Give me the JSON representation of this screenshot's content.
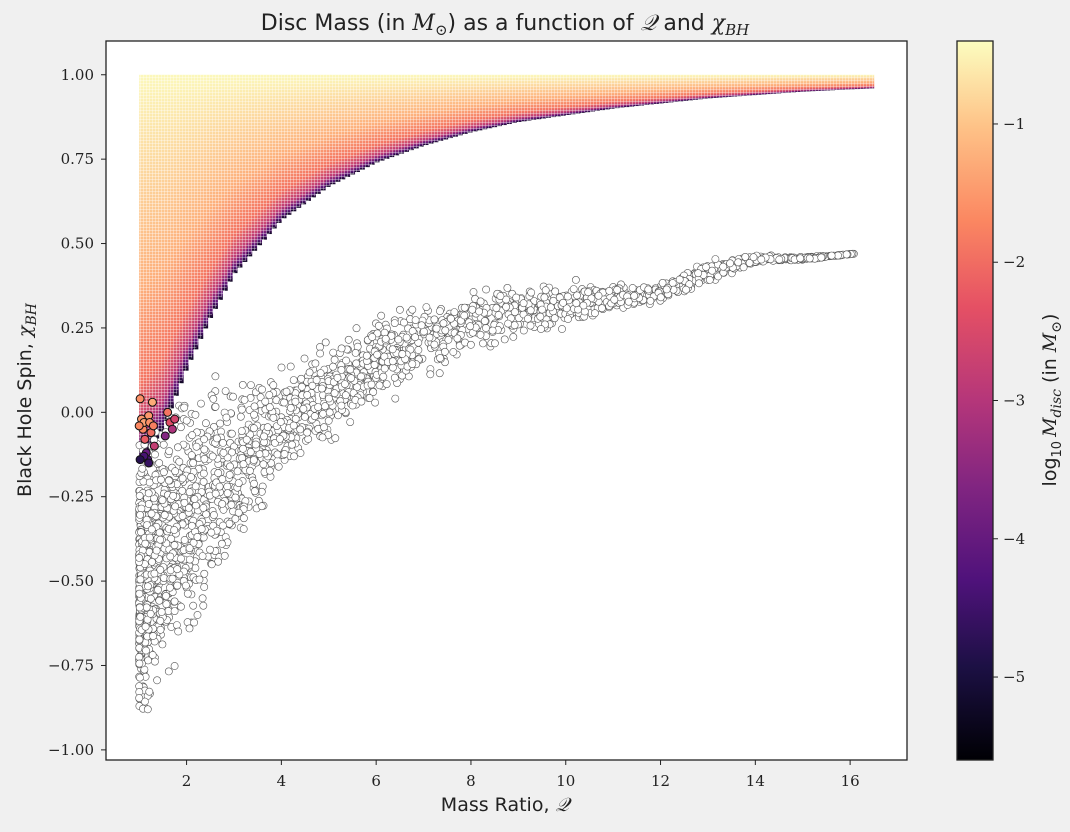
{
  "chart_data": {
    "type": "scatter",
    "title": {
      "prefix": "Disc Mass (in ",
      "unit_symbol": "M",
      "unit_sub": "⊙",
      "middle": ") as a function of ",
      "q_symbol": "𝒬",
      "and": " and ",
      "chi_symbol": "χ",
      "chi_sub": "BH"
    },
    "xlabel": {
      "text": "Mass Ratio, ",
      "symbol": "𝒬"
    },
    "ylabel": {
      "text": "Black Hole Spin, ",
      "symbol": "χ",
      "sub": "BH"
    },
    "colorbar_label": {
      "log": "log",
      "log_sub": "10",
      "symbol": "M",
      "sub": "disc",
      "unit_prefix": " (in ",
      "unit_symbol": "M",
      "unit_sub": "⊙",
      "unit_suffix": ")"
    },
    "xlim": [
      0.3,
      17.2
    ],
    "ylim": [
      -1.03,
      1.1
    ],
    "clim": [
      -5.6,
      -0.4
    ],
    "x_ticks": [
      2,
      4,
      6,
      8,
      10,
      12,
      14,
      16
    ],
    "x_tick_labels": [
      "2",
      "4",
      "6",
      "8",
      "10",
      "12",
      "14",
      "16"
    ],
    "y_ticks": [
      1.0,
      0.75,
      0.5,
      0.25,
      0.0,
      -0.25,
      -0.5,
      -0.75,
      -1.0
    ],
    "y_tick_labels": [
      "1.00",
      "0.75",
      "0.50",
      "0.25",
      "0.00",
      "−0.25",
      "−0.50",
      "−0.75",
      "−1.00"
    ],
    "colorbar_ticks": [
      -1,
      -2,
      -3,
      -4,
      -5
    ],
    "colorbar_tick_labels": [
      "−1",
      "−2",
      "−3",
      "−4",
      "−5"
    ],
    "colormap": "magma",
    "grid": false,
    "disc_mass_region": {
      "q_range": [
        1.0,
        16.5
      ],
      "chi_max": 1.0,
      "lower_boundary": [
        {
          "q": 1.0,
          "chi": -0.15
        },
        {
          "q": 1.5,
          "chi": -0.05
        },
        {
          "q": 2.0,
          "chi": 0.13
        },
        {
          "q": 2.5,
          "chi": 0.28
        },
        {
          "q": 3.0,
          "chi": 0.41
        },
        {
          "q": 4.0,
          "chi": 0.57
        },
        {
          "q": 5.0,
          "chi": 0.67
        },
        {
          "q": 6.0,
          "chi": 0.74
        },
        {
          "q": 7.0,
          "chi": 0.79
        },
        {
          "q": 8.0,
          "chi": 0.83
        },
        {
          "q": 9.0,
          "chi": 0.86
        },
        {
          "q": 10.0,
          "chi": 0.88
        },
        {
          "q": 11.0,
          "chi": 0.9
        },
        {
          "q": 12.0,
          "chi": 0.915
        },
        {
          "q": 13.0,
          "chi": 0.93
        },
        {
          "q": 14.0,
          "chi": 0.94
        },
        {
          "q": 15.0,
          "chi": 0.95
        },
        {
          "q": 16.5,
          "chi": 0.96
        }
      ],
      "log_mdisc_at_boundary": -5.3,
      "log_mdisc_at_top": -0.45
    },
    "observed_points": {
      "count": 2500,
      "fill": "#ffffff",
      "edge": "#555555",
      "trend": [
        {
          "q": 1.0,
          "chi_min": -0.93,
          "chi_max": -0.1
        },
        {
          "q": 1.5,
          "chi_min": -0.8,
          "chi_max": 0.0
        },
        {
          "q": 2.0,
          "chi_min": -0.7,
          "chi_max": 0.05
        },
        {
          "q": 3.0,
          "chi_min": -0.45,
          "chi_max": 0.1
        },
        {
          "q": 4.0,
          "chi_min": -0.2,
          "chi_max": 0.12
        },
        {
          "q": 5.0,
          "chi_min": -0.08,
          "chi_max": 0.2
        },
        {
          "q": 6.0,
          "chi_min": 0.02,
          "chi_max": 0.29
        },
        {
          "q": 7.0,
          "chi_min": 0.1,
          "chi_max": 0.32
        },
        {
          "q": 8.0,
          "chi_min": 0.17,
          "chi_max": 0.37
        },
        {
          "q": 9.0,
          "chi_min": 0.22,
          "chi_max": 0.37
        },
        {
          "q": 10.0,
          "chi_min": 0.25,
          "chi_max": 0.4
        },
        {
          "q": 11.0,
          "chi_min": 0.3,
          "chi_max": 0.38
        },
        {
          "q": 12.0,
          "chi_min": 0.33,
          "chi_max": 0.38
        },
        {
          "q": 13.0,
          "chi_min": 0.38,
          "chi_max": 0.45
        },
        {
          "q": 14.0,
          "chi_min": 0.44,
          "chi_max": 0.47
        },
        {
          "q": 15.0,
          "chi_min": 0.45,
          "chi_max": 0.46
        },
        {
          "q": 16.1,
          "chi_min": 0.47,
          "chi_max": 0.47
        }
      ]
    },
    "highlighted_points": [
      {
        "q": 1.02,
        "chi": 0.04,
        "log_mdisc": -1.6
      },
      {
        "q": 1.05,
        "chi": -0.02,
        "log_mdisc": -1.5
      },
      {
        "q": 1.08,
        "chi": -0.05,
        "log_mdisc": -1.7
      },
      {
        "q": 1.1,
        "chi": -0.03,
        "log_mdisc": -1.4
      },
      {
        "q": 1.12,
        "chi": -0.08,
        "log_mdisc": -2.2
      },
      {
        "q": 1.15,
        "chi": -0.12,
        "log_mdisc": -4.0
      },
      {
        "q": 1.18,
        "chi": -0.14,
        "log_mdisc": -4.3
      },
      {
        "q": 1.2,
        "chi": -0.01,
        "log_mdisc": -1.5
      },
      {
        "q": 1.22,
        "chi": -0.03,
        "log_mdisc": -1.6
      },
      {
        "q": 1.25,
        "chi": -0.06,
        "log_mdisc": -2.0
      },
      {
        "q": 1.28,
        "chi": 0.03,
        "log_mdisc": -1.3
      },
      {
        "q": 1.3,
        "chi": -0.04,
        "log_mdisc": -1.8
      },
      {
        "q": 1.32,
        "chi": -0.1,
        "log_mdisc": -2.8
      },
      {
        "q": 1.2,
        "chi": -0.15,
        "log_mdisc": -4.6
      },
      {
        "q": 1.1,
        "chi": -0.13,
        "log_mdisc": -4.4
      },
      {
        "q": 1.55,
        "chi": -0.07,
        "log_mdisc": -3.6
      },
      {
        "q": 1.6,
        "chi": 0.0,
        "log_mdisc": -1.9
      },
      {
        "q": 1.65,
        "chi": -0.03,
        "log_mdisc": -2.4
      },
      {
        "q": 1.7,
        "chi": -0.05,
        "log_mdisc": -3.1
      },
      {
        "q": 1.75,
        "chi": -0.02,
        "log_mdisc": -2.6
      },
      {
        "q": 1.02,
        "chi": -0.14,
        "log_mdisc": -4.8
      },
      {
        "q": 1.0,
        "chi": -0.04,
        "log_mdisc": -1.7
      }
    ]
  }
}
